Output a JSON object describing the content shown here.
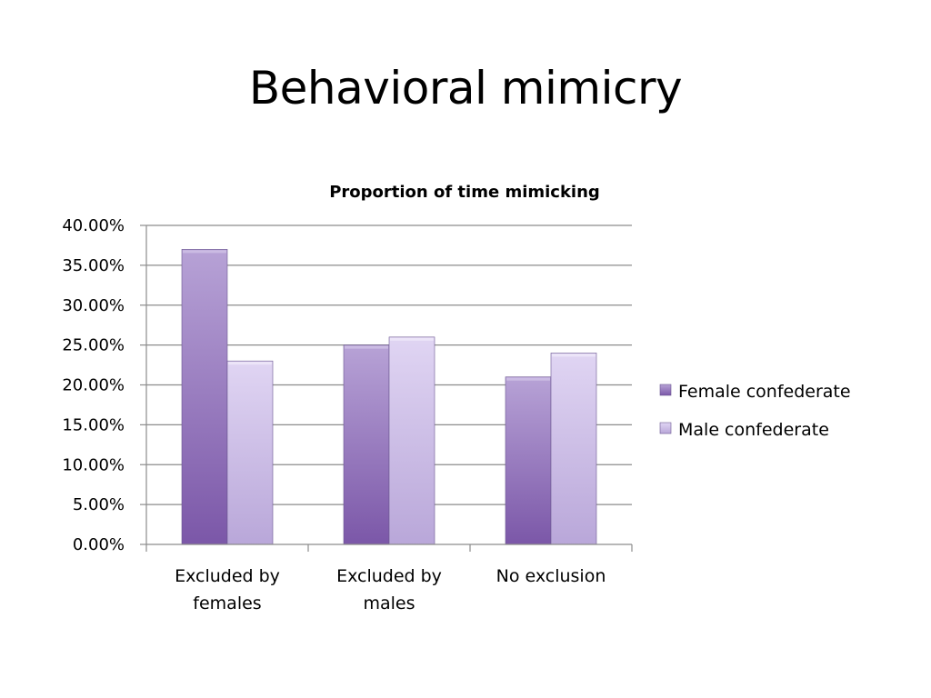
{
  "slide": {
    "title": "Behavioral mimicry"
  },
  "colors": {
    "female": "#8a6ab4",
    "male": "#c9b8e6",
    "grid": "#8c8c8c",
    "axis": "#8c8c8c"
  },
  "chart_data": {
    "type": "bar",
    "title": "Proportion of time mimicking",
    "categories": [
      [
        "Excluded by",
        "females"
      ],
      [
        "Excluded by",
        "males"
      ],
      [
        "No exclusion"
      ]
    ],
    "series": [
      {
        "name": "Female confederate",
        "values": [
          0.37,
          0.25,
          0.21
        ]
      },
      {
        "name": "Male confederate",
        "values": [
          0.23,
          0.26,
          0.24
        ]
      }
    ],
    "ylim": [
      0,
      0.4
    ],
    "yticks": [
      {
        "value": 0.4,
        "label": "40.00%"
      },
      {
        "value": 0.35,
        "label": "35.00%"
      },
      {
        "value": 0.3,
        "label": "30.00%"
      },
      {
        "value": 0.25,
        "label": "25.00%"
      },
      {
        "value": 0.2,
        "label": "20.00%"
      },
      {
        "value": 0.15,
        "label": "15.00%"
      },
      {
        "value": 0.1,
        "label": "10.00%"
      },
      {
        "value": 0.05,
        "label": "5.00%"
      },
      {
        "value": 0.0,
        "label": "0.00%"
      }
    ],
    "grid": true,
    "legend": "right"
  }
}
